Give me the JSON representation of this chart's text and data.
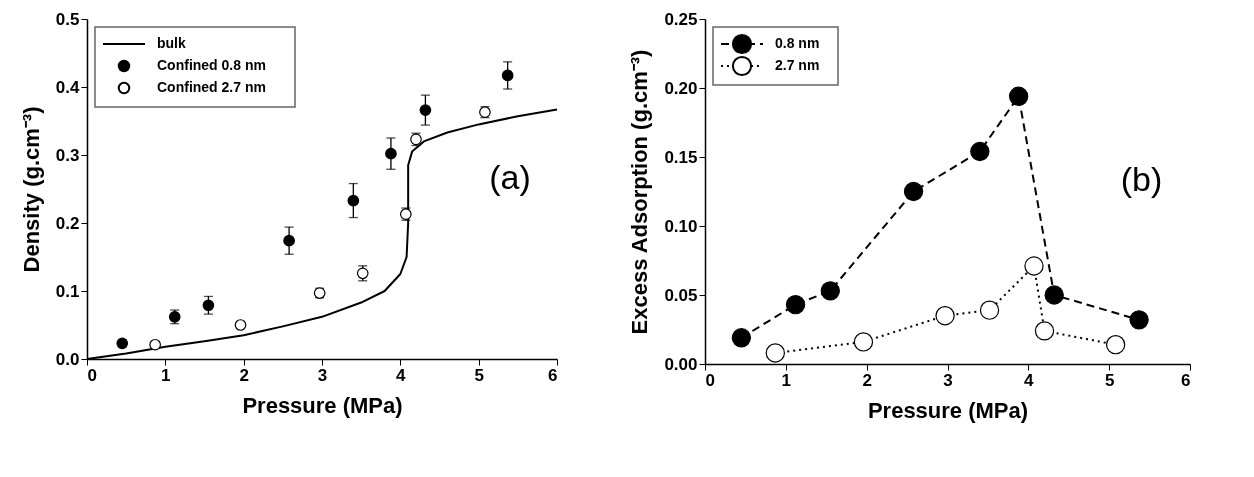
{
  "chart_data": [
    {
      "type": "scatter",
      "xlabel": "Pressure (MPa)",
      "ylabel": "Density (g.cm⁻³)",
      "xlim": [
        0,
        6
      ],
      "ylim": [
        0,
        0.5
      ],
      "xticks": [
        0,
        1,
        2,
        3,
        4,
        5,
        6
      ],
      "yticks": [
        {
          "value": 0,
          "label": "0.0"
        },
        0.1,
        0.2,
        0.3,
        0.4,
        0.5
      ],
      "grid": false,
      "legend": "top left",
      "annotations": [
        "(a)"
      ],
      "series": [
        {
          "name": "bulk",
          "type": "line",
          "marker": "none",
          "line_style": "solid",
          "color": "#000000",
          "x": [
            0,
            0.5,
            1,
            1.5,
            2,
            2.5,
            3,
            3.5,
            3.8,
            4.0,
            4.08,
            4.1,
            4.1,
            4.15,
            4.3,
            4.6,
            5,
            5.5,
            6
          ],
          "values": [
            0,
            0.008,
            0.018,
            0.026,
            0.035,
            0.048,
            0.062,
            0.083,
            0.1,
            0.125,
            0.15,
            0.2,
            0.285,
            0.305,
            0.32,
            0.333,
            0.345,
            0.357,
            0.367
          ]
        },
        {
          "name": "Confined 0.8 nm",
          "type": "scatter",
          "marker": "circle",
          "color": "#000000",
          "x": [
            0.45,
            1.12,
            1.55,
            2.58,
            3.4,
            3.88,
            4.32,
            5.37
          ],
          "values": [
            0.023,
            0.062,
            0.079,
            0.174,
            0.233,
            0.302,
            0.366,
            0.417
          ],
          "errors": [
            0.005,
            0.01,
            0.013,
            0.02,
            0.025,
            0.023,
            0.022,
            0.02
          ]
        },
        {
          "name": "Confined 2.7 nm",
          "type": "scatter",
          "marker": "circle",
          "color": "#ffffff",
          "x": [
            0.87,
            1.96,
            2.97,
            3.52,
            4.07,
            4.2,
            5.08
          ],
          "values": [
            0.021,
            0.05,
            0.097,
            0.126,
            0.213,
            0.323,
            0.363
          ],
          "errors": [
            0.004,
            0.004,
            0.007,
            0.011,
            0.009,
            0.009,
            0.008
          ]
        }
      ]
    },
    {
      "type": "line",
      "xlabel": "Pressure (MPa)",
      "ylabel": "Excess Adsorption (g.cm⁻³)",
      "xlim": [
        0,
        6
      ],
      "ylim": [
        0,
        0.25
      ],
      "xticks": [
        0,
        1,
        2,
        3,
        4,
        5,
        6
      ],
      "yticks": [
        {
          "value": 0,
          "label": "0.00"
        },
        0.05,
        {
          "value": 0.1,
          "label": "0.10"
        },
        0.15,
        {
          "value": 0.2,
          "label": "0.20"
        },
        0.25
      ],
      "grid": false,
      "legend": "top left",
      "marker": "circle",
      "annotations": [
        "(b)"
      ],
      "series": [
        {
          "name": "0.8 nm",
          "line_style": "dashed",
          "color": "#000000",
          "x": [
            0.45,
            1.12,
            1.55,
            2.58,
            3.4,
            3.88,
            4.32,
            5.37
          ],
          "values": [
            0.019,
            0.043,
            0.053,
            0.125,
            0.154,
            0.194,
            0.05,
            0.032
          ]
        },
        {
          "name": "2.7 nm",
          "line_style": "dotted",
          "color": "#ffffff",
          "x": [
            0.87,
            1.96,
            2.97,
            3.52,
            4.07,
            4.2,
            5.08
          ],
          "values": [
            0.008,
            0.016,
            0.035,
            0.039,
            0.071,
            0.024,
            0.014
          ]
        }
      ]
    }
  ]
}
